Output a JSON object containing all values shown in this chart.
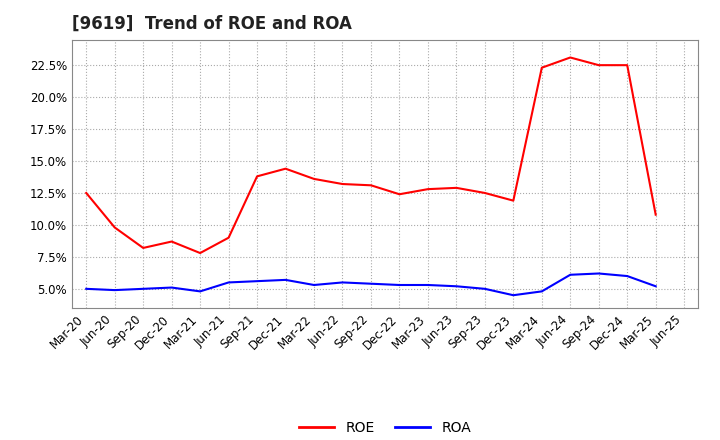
{
  "title": "[9619]  Trend of ROE and ROA",
  "x_labels": [
    "Mar-20",
    "Jun-20",
    "Sep-20",
    "Dec-20",
    "Mar-21",
    "Jun-21",
    "Sep-21",
    "Dec-21",
    "Mar-22",
    "Jun-22",
    "Sep-22",
    "Dec-22",
    "Mar-23",
    "Jun-23",
    "Sep-23",
    "Dec-23",
    "Mar-24",
    "Jun-24",
    "Sep-24",
    "Dec-24",
    "Mar-25",
    "Jun-25"
  ],
  "roe": [
    12.5,
    9.8,
    8.2,
    8.7,
    7.8,
    9.0,
    13.8,
    14.4,
    13.6,
    13.2,
    13.1,
    12.4,
    12.8,
    12.9,
    12.5,
    11.9,
    22.3,
    23.1,
    22.5,
    22.5,
    10.8,
    null
  ],
  "roa": [
    5.0,
    4.9,
    5.0,
    5.1,
    4.8,
    5.5,
    5.6,
    5.7,
    5.3,
    5.5,
    5.4,
    5.3,
    5.3,
    5.2,
    5.0,
    4.5,
    4.8,
    6.1,
    6.2,
    6.0,
    5.2,
    null
  ],
  "roe_color": "#ff0000",
  "roa_color": "#0000ff",
  "background_color": "#ffffff",
  "plot_bg_color": "#ffffff",
  "grid_color": "#aaaaaa",
  "ylim": [
    3.5,
    24.5
  ],
  "yticks": [
    5.0,
    7.5,
    10.0,
    12.5,
    15.0,
    17.5,
    20.0,
    22.5
  ],
  "title_fontsize": 12,
  "legend_fontsize": 10,
  "tick_fontsize": 8.5
}
